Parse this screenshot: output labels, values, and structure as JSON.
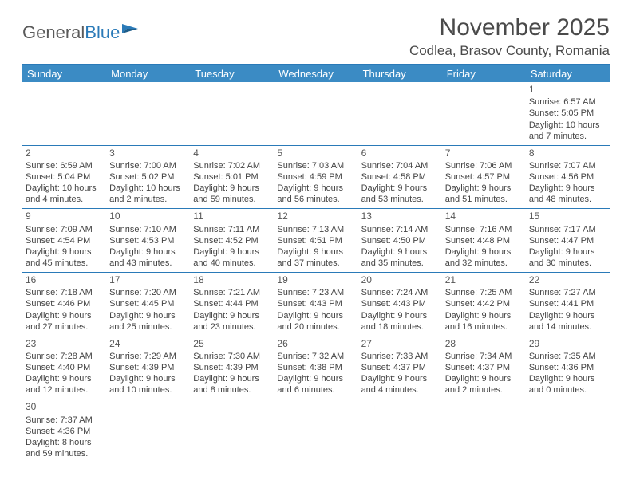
{
  "logo": {
    "general": "General",
    "blue": "Blue"
  },
  "title": "November 2025",
  "location": "Codlea, Brasov County, Romania",
  "dow": [
    "Sunday",
    "Monday",
    "Tuesday",
    "Wednesday",
    "Thursday",
    "Friday",
    "Saturday"
  ],
  "colors": {
    "header_bg": "#3b8bc4",
    "border": "#2a7ab8",
    "text": "#444444",
    "title": "#4a4a4a"
  },
  "cells": [
    {
      "day": "",
      "lines": []
    },
    {
      "day": "",
      "lines": []
    },
    {
      "day": "",
      "lines": []
    },
    {
      "day": "",
      "lines": []
    },
    {
      "day": "",
      "lines": []
    },
    {
      "day": "",
      "lines": []
    },
    {
      "day": "1",
      "lines": [
        "Sunrise: 6:57 AM",
        "Sunset: 5:05 PM",
        "Daylight: 10 hours",
        "and 7 minutes."
      ]
    },
    {
      "day": "2",
      "lines": [
        "Sunrise: 6:59 AM",
        "Sunset: 5:04 PM",
        "Daylight: 10 hours",
        "and 4 minutes."
      ]
    },
    {
      "day": "3",
      "lines": [
        "Sunrise: 7:00 AM",
        "Sunset: 5:02 PM",
        "Daylight: 10 hours",
        "and 2 minutes."
      ]
    },
    {
      "day": "4",
      "lines": [
        "Sunrise: 7:02 AM",
        "Sunset: 5:01 PM",
        "Daylight: 9 hours",
        "and 59 minutes."
      ]
    },
    {
      "day": "5",
      "lines": [
        "Sunrise: 7:03 AM",
        "Sunset: 4:59 PM",
        "Daylight: 9 hours",
        "and 56 minutes."
      ]
    },
    {
      "day": "6",
      "lines": [
        "Sunrise: 7:04 AM",
        "Sunset: 4:58 PM",
        "Daylight: 9 hours",
        "and 53 minutes."
      ]
    },
    {
      "day": "7",
      "lines": [
        "Sunrise: 7:06 AM",
        "Sunset: 4:57 PM",
        "Daylight: 9 hours",
        "and 51 minutes."
      ]
    },
    {
      "day": "8",
      "lines": [
        "Sunrise: 7:07 AM",
        "Sunset: 4:56 PM",
        "Daylight: 9 hours",
        "and 48 minutes."
      ]
    },
    {
      "day": "9",
      "lines": [
        "Sunrise: 7:09 AM",
        "Sunset: 4:54 PM",
        "Daylight: 9 hours",
        "and 45 minutes."
      ]
    },
    {
      "day": "10",
      "lines": [
        "Sunrise: 7:10 AM",
        "Sunset: 4:53 PM",
        "Daylight: 9 hours",
        "and 43 minutes."
      ]
    },
    {
      "day": "11",
      "lines": [
        "Sunrise: 7:11 AM",
        "Sunset: 4:52 PM",
        "Daylight: 9 hours",
        "and 40 minutes."
      ]
    },
    {
      "day": "12",
      "lines": [
        "Sunrise: 7:13 AM",
        "Sunset: 4:51 PM",
        "Daylight: 9 hours",
        "and 37 minutes."
      ]
    },
    {
      "day": "13",
      "lines": [
        "Sunrise: 7:14 AM",
        "Sunset: 4:50 PM",
        "Daylight: 9 hours",
        "and 35 minutes."
      ]
    },
    {
      "day": "14",
      "lines": [
        "Sunrise: 7:16 AM",
        "Sunset: 4:48 PM",
        "Daylight: 9 hours",
        "and 32 minutes."
      ]
    },
    {
      "day": "15",
      "lines": [
        "Sunrise: 7:17 AM",
        "Sunset: 4:47 PM",
        "Daylight: 9 hours",
        "and 30 minutes."
      ]
    },
    {
      "day": "16",
      "lines": [
        "Sunrise: 7:18 AM",
        "Sunset: 4:46 PM",
        "Daylight: 9 hours",
        "and 27 minutes."
      ]
    },
    {
      "day": "17",
      "lines": [
        "Sunrise: 7:20 AM",
        "Sunset: 4:45 PM",
        "Daylight: 9 hours",
        "and 25 minutes."
      ]
    },
    {
      "day": "18",
      "lines": [
        "Sunrise: 7:21 AM",
        "Sunset: 4:44 PM",
        "Daylight: 9 hours",
        "and 23 minutes."
      ]
    },
    {
      "day": "19",
      "lines": [
        "Sunrise: 7:23 AM",
        "Sunset: 4:43 PM",
        "Daylight: 9 hours",
        "and 20 minutes."
      ]
    },
    {
      "day": "20",
      "lines": [
        "Sunrise: 7:24 AM",
        "Sunset: 4:43 PM",
        "Daylight: 9 hours",
        "and 18 minutes."
      ]
    },
    {
      "day": "21",
      "lines": [
        "Sunrise: 7:25 AM",
        "Sunset: 4:42 PM",
        "Daylight: 9 hours",
        "and 16 minutes."
      ]
    },
    {
      "day": "22",
      "lines": [
        "Sunrise: 7:27 AM",
        "Sunset: 4:41 PM",
        "Daylight: 9 hours",
        "and 14 minutes."
      ]
    },
    {
      "day": "23",
      "lines": [
        "Sunrise: 7:28 AM",
        "Sunset: 4:40 PM",
        "Daylight: 9 hours",
        "and 12 minutes."
      ]
    },
    {
      "day": "24",
      "lines": [
        "Sunrise: 7:29 AM",
        "Sunset: 4:39 PM",
        "Daylight: 9 hours",
        "and 10 minutes."
      ]
    },
    {
      "day": "25",
      "lines": [
        "Sunrise: 7:30 AM",
        "Sunset: 4:39 PM",
        "Daylight: 9 hours",
        "and 8 minutes."
      ]
    },
    {
      "day": "26",
      "lines": [
        "Sunrise: 7:32 AM",
        "Sunset: 4:38 PM",
        "Daylight: 9 hours",
        "and 6 minutes."
      ]
    },
    {
      "day": "27",
      "lines": [
        "Sunrise: 7:33 AM",
        "Sunset: 4:37 PM",
        "Daylight: 9 hours",
        "and 4 minutes."
      ]
    },
    {
      "day": "28",
      "lines": [
        "Sunrise: 7:34 AM",
        "Sunset: 4:37 PM",
        "Daylight: 9 hours",
        "and 2 minutes."
      ]
    },
    {
      "day": "29",
      "lines": [
        "Sunrise: 7:35 AM",
        "Sunset: 4:36 PM",
        "Daylight: 9 hours",
        "and 0 minutes."
      ]
    },
    {
      "day": "30",
      "lines": [
        "Sunrise: 7:37 AM",
        "Sunset: 4:36 PM",
        "Daylight: 8 hours",
        "and 59 minutes."
      ]
    },
    {
      "day": "",
      "lines": []
    },
    {
      "day": "",
      "lines": []
    },
    {
      "day": "",
      "lines": []
    },
    {
      "day": "",
      "lines": []
    },
    {
      "day": "",
      "lines": []
    },
    {
      "day": "",
      "lines": []
    }
  ]
}
